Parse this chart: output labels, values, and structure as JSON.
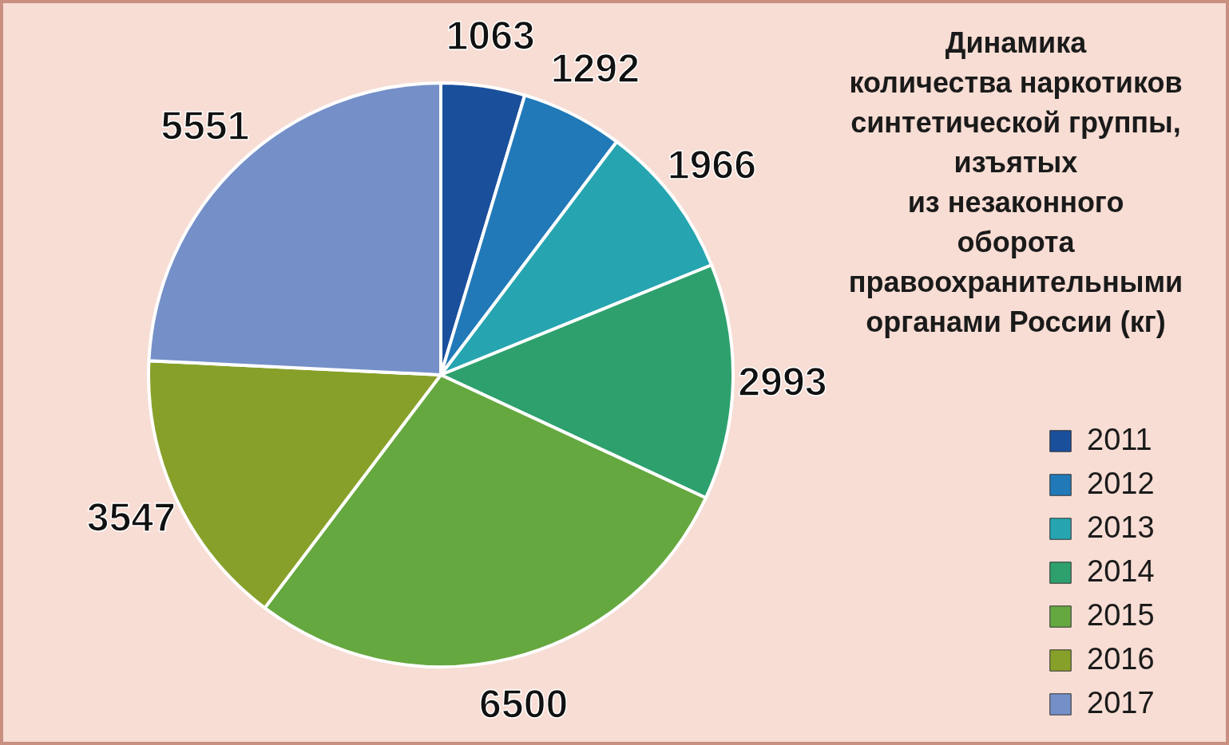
{
  "chart_data": {
    "type": "pie",
    "title": "Динамика\nколичества наркотиков\nсинтетической группы,\nизъятых\nиз незаконного\nоборота\nправоохранительными\nорганами России (кг)",
    "categories": [
      "2011",
      "2012",
      "2013",
      "2014",
      "2015",
      "2016",
      "2017"
    ],
    "values": [
      1063,
      1292,
      1966,
      2993,
      6500,
      3547,
      5551
    ],
    "colors": [
      "#1a4f9c",
      "#2179b8",
      "#26a5b0",
      "#2ea06e",
      "#66a840",
      "#87a02a",
      "#7590c8"
    ],
    "data_labels": true,
    "legend": "bottom right"
  }
}
